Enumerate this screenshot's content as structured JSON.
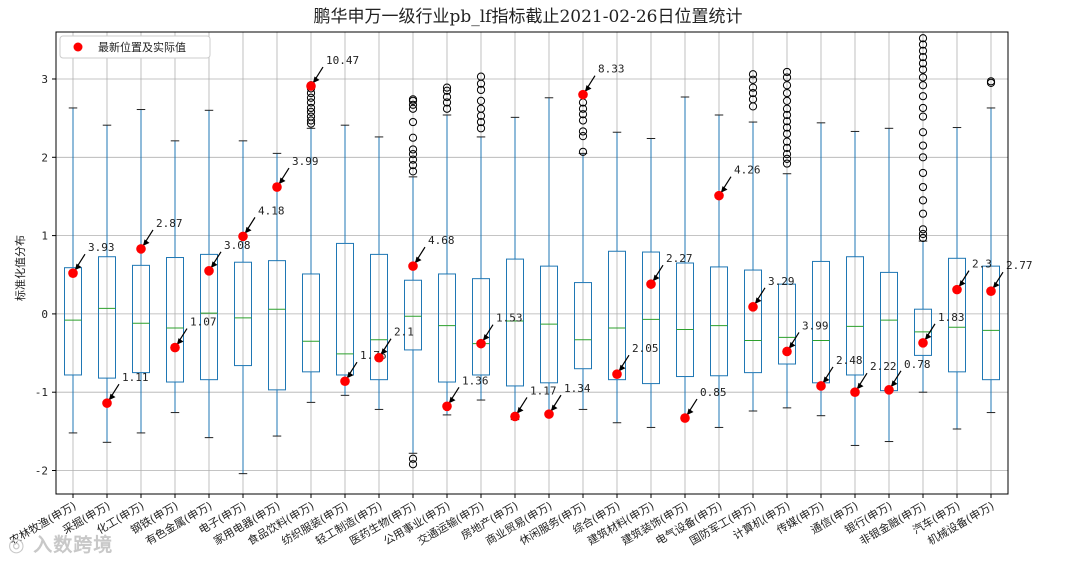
{
  "chart_data": {
    "type": "box",
    "title": "鹏华申万一级行业pb_lf指标截止2021-02-26日位置统计",
    "xlabel": "",
    "ylabel": "标准化值分布",
    "ylim": [
      -2.3,
      3.6
    ],
    "yticks": [
      -2,
      -1,
      0,
      1,
      2,
      3
    ],
    "grid": true,
    "legend": {
      "position": "top-left",
      "label": "最新位置及实际值",
      "color": "#ff0000"
    },
    "colors": {
      "box": "#1f77b4",
      "median": "#2ca02c",
      "marker": "#ff0000",
      "grid": "#b0b0b0"
    },
    "categories": [
      "农林牧渔(申万)",
      "采掘(申万)",
      "化工(申万)",
      "钢铁(申万)",
      "有色金属(申万)",
      "电子(申万)",
      "家用电器(申万)",
      "食品饮料(申万)",
      "纺织服装(申万)",
      "轻工制造(申万)",
      "医药生物(申万)",
      "公用事业(申万)",
      "交通运输(申万)",
      "房地产(申万)",
      "商业贸易(申万)",
      "休闲服务(申万)",
      "综合(申万)",
      "建筑材料(申万)",
      "建筑装饰(申万)",
      "电气设备(申万)",
      "国防军工(申万)",
      "计算机(申万)",
      "传媒(申万)",
      "通信(申万)",
      "银行(申万)",
      "非银金融(申万)",
      "汽车(申万)",
      "机械设备(申万)"
    ],
    "boxes": [
      {
        "whislo": -1.52,
        "q1": -0.78,
        "med": -0.08,
        "q3": 0.59,
        "whishi": 2.63,
        "fliers": []
      },
      {
        "whislo": -1.64,
        "q1": -0.82,
        "med": 0.07,
        "q3": 0.73,
        "whishi": 2.41,
        "fliers": []
      },
      {
        "whislo": -1.52,
        "q1": -0.75,
        "med": -0.12,
        "q3": 0.62,
        "whishi": 2.61,
        "fliers": []
      },
      {
        "whislo": -1.26,
        "q1": -0.87,
        "med": -0.18,
        "q3": 0.72,
        "whishi": 2.21,
        "fliers": []
      },
      {
        "whislo": -1.58,
        "q1": -0.84,
        "med": 0.01,
        "q3": 0.76,
        "whishi": 2.6,
        "fliers": []
      },
      {
        "whislo": -2.04,
        "q1": -0.66,
        "med": -0.05,
        "q3": 0.66,
        "whishi": 2.21,
        "fliers": []
      },
      {
        "whislo": -1.56,
        "q1": -0.97,
        "med": 0.06,
        "q3": 0.68,
        "whishi": 2.05,
        "fliers": []
      },
      {
        "whislo": -1.13,
        "q1": -0.74,
        "med": -0.35,
        "q3": 0.51,
        "whishi": 2.37,
        "fliers": [
          2.43,
          2.47,
          2.52,
          2.58,
          2.63,
          2.7,
          2.76,
          2.82,
          2.88,
          2.92
        ]
      },
      {
        "whislo": -1.04,
        "q1": -0.78,
        "med": -0.51,
        "q3": 0.9,
        "whishi": 2.41,
        "fliers": []
      },
      {
        "whislo": -1.22,
        "q1": -0.84,
        "med": -0.33,
        "q3": 0.76,
        "whishi": 2.26,
        "fliers": []
      },
      {
        "whislo": -1.78,
        "q1": -0.46,
        "med": -0.03,
        "q3": 0.43,
        "whishi": 1.75,
        "fliers": [
          1.82,
          1.9,
          1.97,
          2.04,
          2.1,
          2.25,
          2.45,
          2.62,
          2.67,
          2.72,
          2.74,
          -1.85,
          -1.92
        ]
      },
      {
        "whislo": -1.29,
        "q1": -0.87,
        "med": -0.15,
        "q3": 0.51,
        "whishi": 2.54,
        "fliers": [
          2.62,
          2.7,
          2.77,
          2.85,
          2.89
        ]
      },
      {
        "whislo": -1.1,
        "q1": -0.78,
        "med": -0.38,
        "q3": 0.45,
        "whishi": 2.26,
        "fliers": [
          2.37,
          2.45,
          2.53,
          2.62,
          2.72,
          2.86,
          2.94,
          3.03
        ]
      },
      {
        "whislo": -1.35,
        "q1": -0.92,
        "med": -0.09,
        "q3": 0.7,
        "whishi": 2.51,
        "fliers": []
      },
      {
        "whislo": -1.29,
        "q1": -0.88,
        "med": -0.13,
        "q3": 0.61,
        "whishi": 2.76,
        "fliers": []
      },
      {
        "whislo": -1.22,
        "q1": -0.7,
        "med": -0.33,
        "q3": 0.4,
        "whishi": 2.05,
        "fliers": [
          2.07,
          2.27,
          2.33,
          2.47,
          2.55,
          2.62,
          2.7
        ]
      },
      {
        "whislo": -1.39,
        "q1": -0.84,
        "med": -0.18,
        "q3": 0.8,
        "whishi": 2.32,
        "fliers": []
      },
      {
        "whislo": -1.45,
        "q1": -0.89,
        "med": -0.07,
        "q3": 0.79,
        "whishi": 2.24,
        "fliers": []
      },
      {
        "whislo": -1.32,
        "q1": -0.8,
        "med": -0.2,
        "q3": 0.65,
        "whishi": 2.77,
        "fliers": []
      },
      {
        "whislo": -1.45,
        "q1": -0.79,
        "med": -0.15,
        "q3": 0.6,
        "whishi": 2.54,
        "fliers": []
      },
      {
        "whislo": -1.24,
        "q1": -0.75,
        "med": -0.34,
        "q3": 0.56,
        "whishi": 2.45,
        "fliers": [
          2.65,
          2.74,
          2.82,
          2.89,
          2.99,
          3.06
        ]
      },
      {
        "whislo": -1.2,
        "q1": -0.64,
        "med": -0.3,
        "q3": 0.38,
        "whishi": 1.79,
        "fliers": [
          1.92,
          1.98,
          2.04,
          2.12,
          2.2,
          2.3,
          2.38,
          2.46,
          2.54,
          2.62,
          2.72,
          2.82,
          2.92,
          3.02,
          3.09
        ]
      },
      {
        "whislo": -1.3,
        "q1": -0.88,
        "med": -0.34,
        "q3": 0.67,
        "whishi": 2.44,
        "fliers": []
      },
      {
        "whislo": -1.68,
        "q1": -0.78,
        "med": -0.16,
        "q3": 0.73,
        "whishi": 2.33,
        "fliers": []
      },
      {
        "whislo": -1.63,
        "q1": -0.98,
        "med": -0.08,
        "q3": 0.53,
        "whishi": 2.37,
        "fliers": []
      },
      {
        "whislo": -1.0,
        "q1": -0.53,
        "med": -0.23,
        "q3": 0.06,
        "whishi": 0.93,
        "fliers": [
          0.97,
          1.02,
          1.08,
          1.28,
          1.45,
          1.62,
          1.8,
          2.0,
          2.15,
          2.32,
          2.52,
          2.63,
          2.78,
          2.92,
          3.02,
          3.12,
          3.2,
          3.28,
          3.36,
          3.44,
          3.52
        ]
      },
      {
        "whislo": -1.47,
        "q1": -0.74,
        "med": -0.17,
        "q3": 0.71,
        "whishi": 2.38,
        "fliers": []
      },
      {
        "whislo": -1.26,
        "q1": -0.84,
        "med": -0.21,
        "q3": 0.61,
        "whishi": 2.63,
        "fliers": [
          2.95,
          2.97
        ]
      }
    ],
    "latest": [
      {
        "y": 0.52,
        "label": "3.93"
      },
      {
        "y": -1.14,
        "label": "1.11"
      },
      {
        "y": 0.83,
        "label": "2.87"
      },
      {
        "y": -0.43,
        "label": "1.07"
      },
      {
        "y": 0.55,
        "label": "3.08"
      },
      {
        "y": 0.99,
        "label": "4.18"
      },
      {
        "y": 1.62,
        "label": "3.99"
      },
      {
        "y": 2.91,
        "label": "10.47"
      },
      {
        "y": -0.86,
        "label": "1.76"
      },
      {
        "y": -0.56,
        "label": "2.1"
      },
      {
        "y": 0.61,
        "label": "4.68"
      },
      {
        "y": -1.18,
        "label": "1.36"
      },
      {
        "y": -0.38,
        "label": "1.53"
      },
      {
        "y": -1.31,
        "label": "1.17"
      },
      {
        "y": -1.28,
        "label": "1.34"
      },
      {
        "y": 2.8,
        "label": "8.33"
      },
      {
        "y": -0.77,
        "label": "2.05"
      },
      {
        "y": 0.38,
        "label": "2.27"
      },
      {
        "y": -1.33,
        "label": "0.85"
      },
      {
        "y": 1.51,
        "label": "4.26"
      },
      {
        "y": 0.09,
        "label": "3.29"
      },
      {
        "y": -0.48,
        "label": "3.99"
      },
      {
        "y": -0.92,
        "label": "2.48"
      },
      {
        "y": -1.0,
        "label": "2.22"
      },
      {
        "y": -0.97,
        "label": "0.78"
      },
      {
        "y": -0.37,
        "label": "1.83"
      },
      {
        "y": 0.31,
        "label": "2.3"
      },
      {
        "y": 0.29,
        "label": "2.77"
      }
    ]
  },
  "watermark": {
    "text": "入数跨境"
  }
}
